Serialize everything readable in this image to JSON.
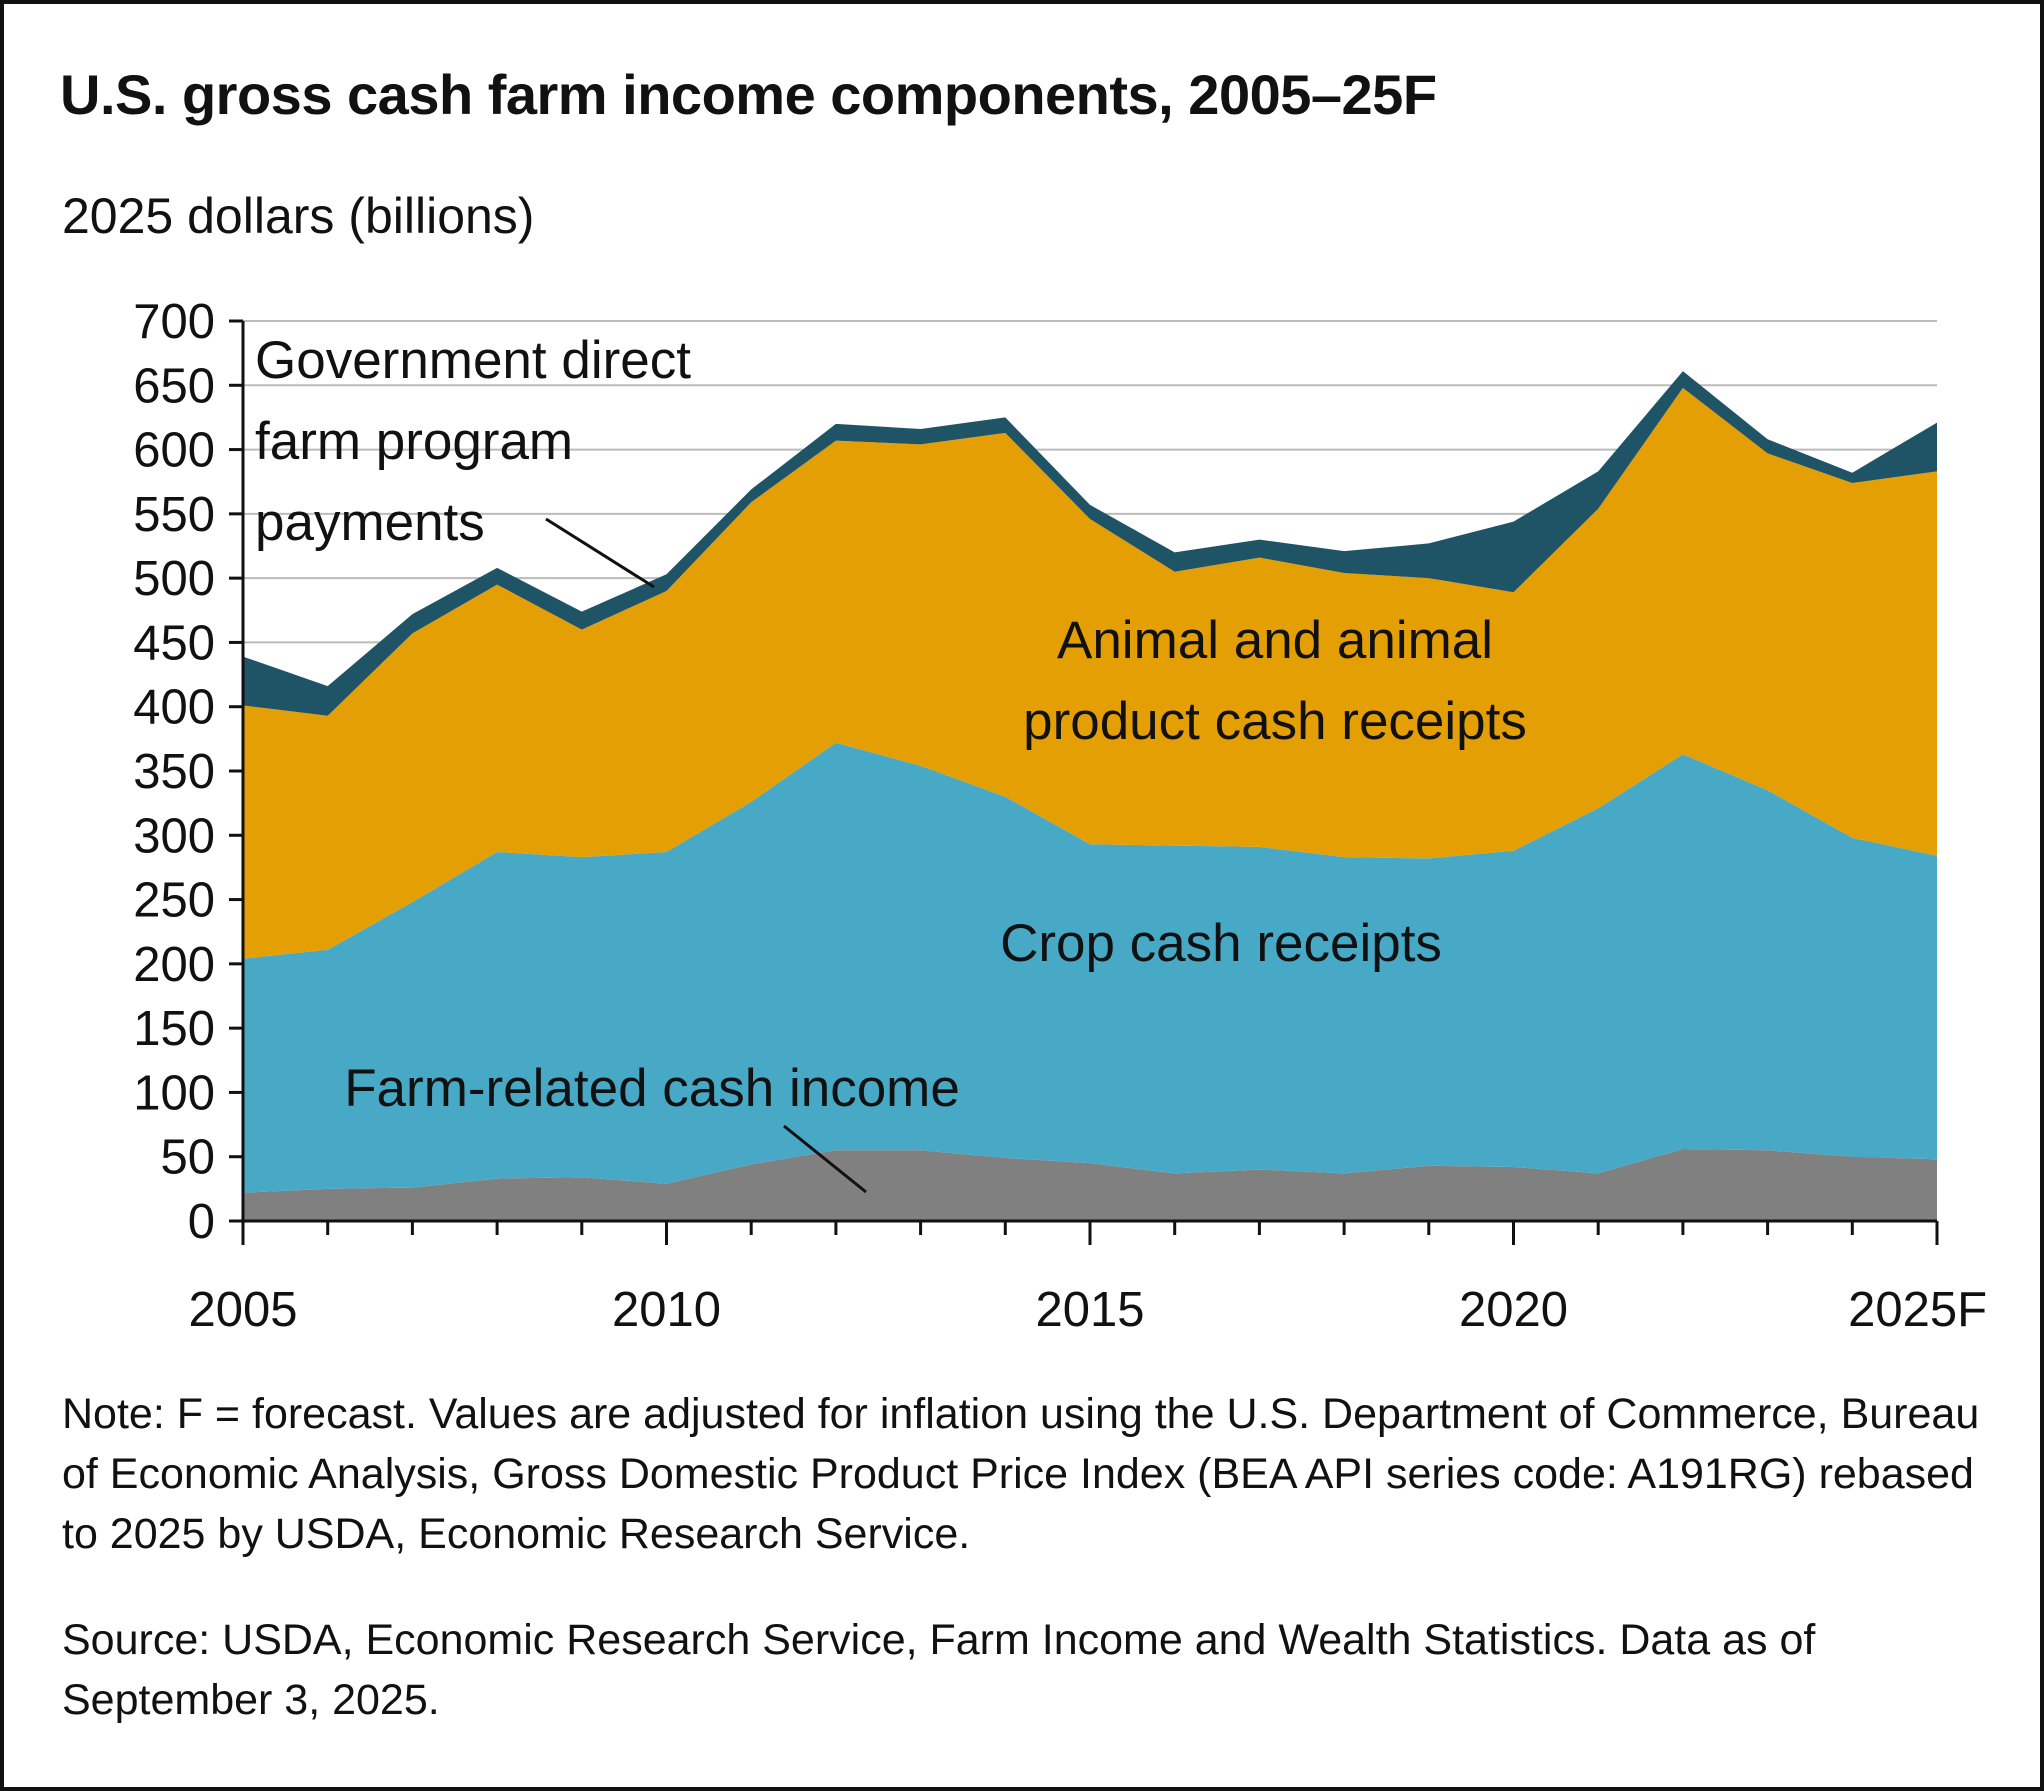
{
  "title": "U.S. gross cash farm income components, 2005–25F",
  "units_label": "2025 dollars (billions)",
  "note": "Note: F = forecast. Values are adjusted for inflation using the U.S. Department of Commerce, Bureau of Economic Analysis, Gross Domestic Product Price Index (BEA API series code: A191RG) rebased to 2025 by USDA, Economic Research Service.",
  "source": "Source: USDA, Economic Research Service, Farm Income and Wealth Statistics. Data as of September 3, 2025.",
  "colors": {
    "farm_related": "#808080",
    "crop": "#47A9C6",
    "animal": "#E49F04",
    "government": "#1F5466",
    "gridline": "#BBBBBB",
    "axis": "#111111"
  },
  "chart_data": {
    "type": "area",
    "stacked": true,
    "title": "U.S. gross cash farm income components, 2005–25F",
    "ylabel": "2025 dollars (billions)",
    "xlabel": "",
    "ylim": [
      0,
      700
    ],
    "yticks": [
      0,
      50,
      100,
      150,
      200,
      250,
      300,
      350,
      400,
      450,
      500,
      550,
      600,
      650,
      700
    ],
    "grid": true,
    "x": [
      2005,
      2006,
      2007,
      2008,
      2009,
      2010,
      2011,
      2012,
      2013,
      2014,
      2015,
      2016,
      2017,
      2018,
      2019,
      2020,
      2021,
      2022,
      2023,
      2024,
      2025
    ],
    "x_tick_values": [
      2005,
      2010,
      2015,
      2020,
      2025
    ],
    "x_tick_labels": [
      "2005",
      "2010",
      "2015",
      "2020",
      "2025F"
    ],
    "series": [
      {
        "name": "Farm-related cash income",
        "color_key": "farm_related",
        "values": [
          22,
          25,
          26,
          33,
          34,
          29,
          44,
          55,
          55,
          49,
          45,
          37,
          40,
          37,
          43,
          42,
          37,
          56,
          55,
          50,
          48
        ]
      },
      {
        "name": "Crop cash receipts",
        "color_key": "crop",
        "values": [
          182,
          186,
          222,
          254,
          249,
          258,
          282,
          317,
          299,
          281,
          248,
          255,
          251,
          246,
          239,
          246,
          284,
          307,
          280,
          248,
          236
        ]
      },
      {
        "name": "Animal and animal product cash receipts",
        "color_key": "animal",
        "values": [
          197,
          182,
          209,
          208,
          177,
          203,
          233,
          235,
          250,
          283,
          253,
          213,
          225,
          221,
          218,
          201,
          233,
          285,
          262,
          276,
          299
        ]
      },
      {
        "name": "Government direct farm program payments",
        "color_key": "government",
        "values": [
          38,
          23,
          15,
          13,
          14,
          13,
          10,
          13,
          12,
          12,
          11,
          15,
          14,
          17,
          27,
          55,
          29,
          13,
          11,
          8,
          38
        ]
      }
    ],
    "annotations": {
      "government": [
        "Government direct",
        "farm program",
        "payments"
      ],
      "animal": [
        "Animal and animal",
        "product cash receipts"
      ],
      "crop": [
        "Crop cash receipts"
      ],
      "farm_related": [
        "Farm-related cash income"
      ]
    }
  }
}
